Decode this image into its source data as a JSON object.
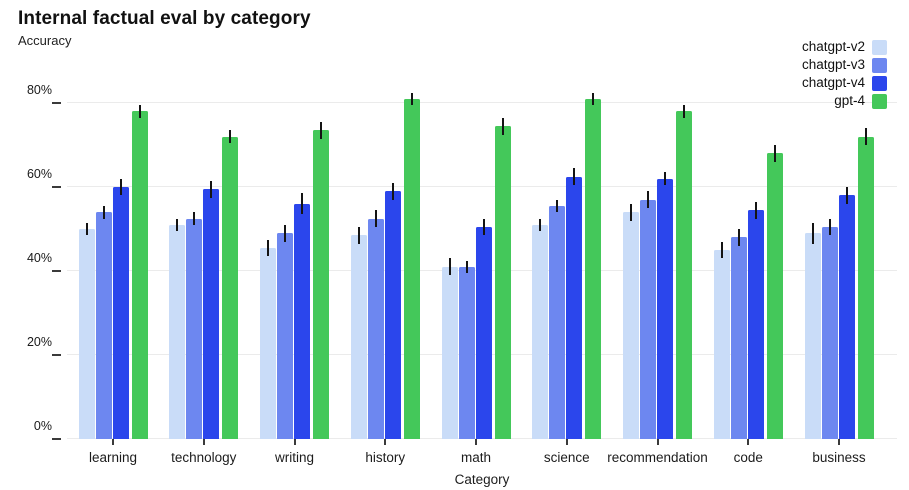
{
  "header": {
    "title": "Internal factual eval by category",
    "subtitle": "Accuracy"
  },
  "axes": {
    "x_label": "Category",
    "y_tick_labels": [
      "0%",
      "20%",
      "40%",
      "60%",
      "80%"
    ]
  },
  "legend": {
    "position": "top-right",
    "items": [
      {
        "label": "chatgpt-v2",
        "color": "#c9dcf8"
      },
      {
        "label": "chatgpt-v3",
        "color": "#6d87f0"
      },
      {
        "label": "chatgpt-v4",
        "color": "#2b46ec"
      },
      {
        "label": "gpt-4",
        "color": "#44c85a"
      }
    ]
  },
  "chart_data": {
    "type": "bar",
    "title": "Internal factual eval by category",
    "ylabel": "Accuracy",
    "xlabel": "Category",
    "ylim": [
      0,
      90
    ],
    "y_tick_values": [
      0,
      20,
      40,
      60,
      80
    ],
    "grid": true,
    "error_bars": true,
    "legend_position": "top-right",
    "categories": [
      "learning",
      "technology",
      "writing",
      "history",
      "math",
      "science",
      "recommendation",
      "code",
      "business"
    ],
    "series": [
      {
        "name": "chatgpt-v2",
        "color": "#c9dcf8",
        "values": [
          50,
          51,
          45.5,
          48.5,
          41,
          51,
          54,
          45,
          49
        ],
        "errors": [
          1.5,
          1.5,
          2,
          2,
          2,
          1.5,
          2,
          2,
          2.5
        ]
      },
      {
        "name": "chatgpt-v3",
        "color": "#6d87f0",
        "values": [
          54,
          52.5,
          49,
          52.5,
          41,
          55.5,
          57,
          48,
          50.5
        ],
        "errors": [
          1.5,
          1.5,
          2,
          2,
          1.5,
          1.5,
          2,
          2,
          2
        ]
      },
      {
        "name": "chatgpt-v4",
        "color": "#2b46ec",
        "values": [
          60,
          59.5,
          56,
          59,
          50.5,
          62.5,
          62,
          54.5,
          58
        ],
        "errors": [
          2,
          2,
          2.5,
          2,
          2,
          2,
          1.5,
          2,
          2
        ]
      },
      {
        "name": "gpt-4",
        "color": "#44c85a",
        "values": [
          78,
          72,
          73.5,
          81,
          74.5,
          81,
          78,
          68,
          72
        ],
        "errors": [
          1.5,
          1.5,
          2,
          1.5,
          2,
          1.5,
          1.5,
          2,
          2
        ]
      }
    ]
  }
}
